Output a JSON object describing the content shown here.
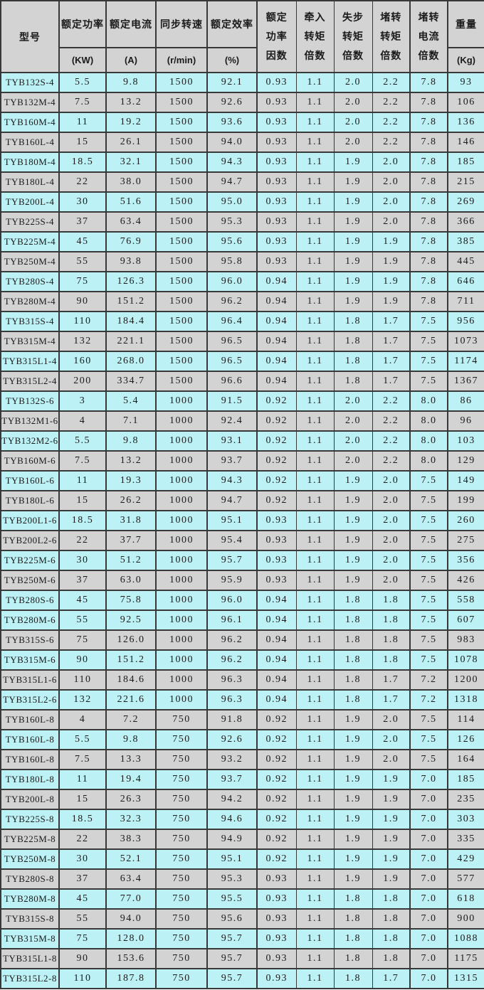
{
  "colors": {
    "row-cyan": "#BCF2F5",
    "row-gray": "#D3D3D3",
    "header-bg": "#D3D3D3",
    "border": "#383838",
    "text": "#1A1A1A"
  },
  "table": {
    "columns": [
      {
        "label": "型号",
        "unit": ""
      },
      {
        "label": "额定功率",
        "unit": "(KW)"
      },
      {
        "label": "额定电流",
        "unit": "(A)"
      },
      {
        "label": "同步转速",
        "unit": "(r/min)"
      },
      {
        "label": "额定效率",
        "unit": "(%)"
      },
      {
        "label": "额定功率因数",
        "lines": [
          "额定",
          "功率",
          "因数"
        ]
      },
      {
        "label": "牵入转矩倍数",
        "lines": [
          "牵入",
          "转矩",
          "倍数"
        ]
      },
      {
        "label": "失步转矩倍数",
        "lines": [
          "失步",
          "转矩",
          "倍数"
        ]
      },
      {
        "label": "堵转转矩倍数",
        "lines": [
          "堵转",
          "转矩",
          "倍数"
        ]
      },
      {
        "label": "堵转电流倍数",
        "lines": [
          "堵转",
          "电流",
          "倍数"
        ]
      },
      {
        "label": "重量",
        "unit": "(Kg)"
      }
    ],
    "rows": [
      {
        "model": "TYB132S-4",
        "values": [
          "5.5",
          "9.8",
          "1500",
          "92.1",
          "0.93",
          "1.1",
          "2.0",
          "2.2",
          "7.8",
          "93"
        ],
        "shade": "cyan"
      },
      {
        "model": "TYB132M-4",
        "values": [
          "7.5",
          "13.2",
          "1500",
          "92.6",
          "0.93",
          "1.1",
          "2.0",
          "2.2",
          "7.8",
          "106"
        ],
        "shade": "gray"
      },
      {
        "model": "TYB160M-4",
        "values": [
          "11",
          "19.2",
          "1500",
          "93.6",
          "0.93",
          "1.1",
          "2.0",
          "2.2",
          "7.8",
          "136"
        ],
        "shade": "cyan"
      },
      {
        "model": "TYB160L-4",
        "values": [
          "15",
          "26.1",
          "1500",
          "94.0",
          "0.93",
          "1.1",
          "2.0",
          "2.2",
          "7.8",
          "146"
        ],
        "shade": "gray"
      },
      {
        "model": "TYB180M-4",
        "values": [
          "18.5",
          "32.1",
          "1500",
          "94.3",
          "0.93",
          "1.1",
          "1.9",
          "2.0",
          "7.8",
          "185"
        ],
        "shade": "cyan"
      },
      {
        "model": "TYB180L-4",
        "values": [
          "22",
          "38.0",
          "1500",
          "94.7",
          "0.93",
          "1.1",
          "1.9",
          "2.0",
          "7.8",
          "215"
        ],
        "shade": "gray"
      },
      {
        "model": "TYB200L-4",
        "values": [
          "30",
          "51.6",
          "1500",
          "95.0",
          "0.93",
          "1.1",
          "1.9",
          "2.0",
          "7.8",
          "269"
        ],
        "shade": "cyan"
      },
      {
        "model": "TYB225S-4",
        "values": [
          "37",
          "63.4",
          "1500",
          "95.3",
          "0.93",
          "1.1",
          "1.9",
          "2.0",
          "7.8",
          "366"
        ],
        "shade": "gray"
      },
      {
        "model": "TYB225M-4",
        "values": [
          "45",
          "76.9",
          "1500",
          "95.6",
          "0.93",
          "1.1",
          "1.9",
          "1.9",
          "7.8",
          "385"
        ],
        "shade": "cyan"
      },
      {
        "model": "TYB250M-4",
        "values": [
          "55",
          "93.8",
          "1500",
          "95.8",
          "0.93",
          "1.1",
          "1.9",
          "1.9",
          "7.8",
          "445"
        ],
        "shade": "gray"
      },
      {
        "model": "TYB280S-4",
        "values": [
          "75",
          "126.3",
          "1500",
          "96.0",
          "0.94",
          "1.1",
          "1.9",
          "1.9",
          "7.8",
          "646"
        ],
        "shade": "cyan"
      },
      {
        "model": "TYB280M-4",
        "values": [
          "90",
          "151.2",
          "1500",
          "96.2",
          "0.94",
          "1.1",
          "1.9",
          "1.9",
          "7.8",
          "711"
        ],
        "shade": "gray"
      },
      {
        "model": "TYB315S-4",
        "values": [
          "110",
          "184.4",
          "1500",
          "96.4",
          "0.94",
          "1.1",
          "1.8",
          "1.7",
          "7.5",
          "956"
        ],
        "shade": "cyan"
      },
      {
        "model": "TYB315M-4",
        "values": [
          "132",
          "221.1",
          "1500",
          "96.5",
          "0.94",
          "1.1",
          "1.8",
          "1.7",
          "7.5",
          "1073"
        ],
        "shade": "gray"
      },
      {
        "model": "TYB315L1-4",
        "values": [
          "160",
          "268.0",
          "1500",
          "96.5",
          "0.94",
          "1.1",
          "1.8",
          "1.7",
          "7.5",
          "1174"
        ],
        "shade": "cyan"
      },
      {
        "model": "TYB315L2-4",
        "values": [
          "200",
          "334.7",
          "1500",
          "96.6",
          "0.94",
          "1.1",
          "1.8",
          "1.7",
          "7.5",
          "1367"
        ],
        "shade": "gray"
      },
      {
        "model": "TYB132S-6",
        "values": [
          "3",
          "5.4",
          "1000",
          "91.5",
          "0.92",
          "1.1",
          "2.0",
          "2.2",
          "8.0",
          "86"
        ],
        "shade": "cyan"
      },
      {
        "model": "TYB132M1-6",
        "values": [
          "4",
          "7.1",
          "1000",
          "92.4",
          "0.92",
          "1.1",
          "2.0",
          "2.2",
          "8.0",
          "96"
        ],
        "shade": "gray"
      },
      {
        "model": "TYB132M2-6",
        "values": [
          "5.5",
          "9.8",
          "1000",
          "93.1",
          "0.92",
          "1.1",
          "2.0",
          "2.2",
          "8.0",
          "103"
        ],
        "shade": "cyan"
      },
      {
        "model": "TYB160M-6",
        "values": [
          "7.5",
          "13.2",
          "1000",
          "93.7",
          "0.92",
          "1.1",
          "2.0",
          "2.2",
          "8.0",
          "129"
        ],
        "shade": "gray"
      },
      {
        "model": "TYB160L-6",
        "values": [
          "11",
          "19.3",
          "1000",
          "94.3",
          "0.92",
          "1.1",
          "1.9",
          "2.0",
          "7.5",
          "149"
        ],
        "shade": "cyan"
      },
      {
        "model": "TYB180L-6",
        "values": [
          "15",
          "26.2",
          "1000",
          "94.7",
          "0.92",
          "1.1",
          "1.9",
          "2.0",
          "7.5",
          "199"
        ],
        "shade": "gray"
      },
      {
        "model": "TYB200L1-6",
        "values": [
          "18.5",
          "31.8",
          "1000",
          "95.1",
          "0.93",
          "1.1",
          "1.9",
          "2.0",
          "7.5",
          "260"
        ],
        "shade": "cyan"
      },
      {
        "model": "TYB200L2-6",
        "values": [
          "22",
          "37.7",
          "1000",
          "95.4",
          "0.93",
          "1.1",
          "1.9",
          "2.0",
          "7.5",
          "275"
        ],
        "shade": "gray"
      },
      {
        "model": "TYB225M-6",
        "values": [
          "30",
          "51.2",
          "1000",
          "95.7",
          "0.93",
          "1.1",
          "1.9",
          "2.0",
          "7.5",
          "356"
        ],
        "shade": "cyan"
      },
      {
        "model": "TYB250M-6",
        "values": [
          "37",
          "63.0",
          "1000",
          "95.9",
          "0.93",
          "1.1",
          "1.9",
          "2.0",
          "7.5",
          "426"
        ],
        "shade": "gray"
      },
      {
        "model": "TYB280S-6",
        "values": [
          "45",
          "75.8",
          "1000",
          "96.0",
          "0.94",
          "1.1",
          "1.8",
          "1.8",
          "7.5",
          "558"
        ],
        "shade": "cyan"
      },
      {
        "model": "TYB280M-6",
        "values": [
          "55",
          "92.5",
          "1000",
          "96.1",
          "0.94",
          "1.1",
          "1.8",
          "1.8",
          "7.5",
          "607"
        ],
        "shade": "cyan"
      },
      {
        "model": "TYB315S-6",
        "values": [
          "75",
          "126.0",
          "1000",
          "96.2",
          "0.94",
          "1.1",
          "1.8",
          "1.8",
          "7.5",
          "983"
        ],
        "shade": "gray"
      },
      {
        "model": "TYB315M-6",
        "values": [
          "90",
          "151.2",
          "1000",
          "96.2",
          "0.94",
          "1.1",
          "1.8",
          "1.8",
          "7.5",
          "1078"
        ],
        "shade": "cyan"
      },
      {
        "model": "TYB315L1-6",
        "values": [
          "110",
          "184.6",
          "1000",
          "96.3",
          "0.94",
          "1.1",
          "1.8",
          "1.7",
          "7.2",
          "1200"
        ],
        "shade": "gray"
      },
      {
        "model": "TYB315L2-6",
        "values": [
          "132",
          "221.6",
          "1000",
          "96.3",
          "0.94",
          "1.1",
          "1.8",
          "1.7",
          "7.2",
          "1318"
        ],
        "shade": "cyan"
      },
      {
        "model": "TYB160L-8",
        "values": [
          "4",
          "7.2",
          "750",
          "91.8",
          "0.92",
          "1.1",
          "1.9",
          "2.0",
          "7.5",
          "114"
        ],
        "shade": "gray"
      },
      {
        "model": "TYB160L-8",
        "values": [
          "5.5",
          "9.8",
          "750",
          "92.6",
          "0.92",
          "1.1",
          "1.9",
          "2.0",
          "7.5",
          "126"
        ],
        "shade": "cyan"
      },
      {
        "model": "TYB160L-8",
        "values": [
          "7.5",
          "13.3",
          "750",
          "93.2",
          "0.92",
          "1.1",
          "1.9",
          "2.0",
          "7.5",
          "164"
        ],
        "shade": "gray"
      },
      {
        "model": "TYB180L-8",
        "values": [
          "11",
          "19.4",
          "750",
          "93.7",
          "0.92",
          "1.1",
          "1.9",
          "1.9",
          "7.0",
          "185"
        ],
        "shade": "cyan"
      },
      {
        "model": "TYB200L-8",
        "values": [
          "15",
          "26.3",
          "750",
          "94.2",
          "0.92",
          "1.1",
          "1.9",
          "1.9",
          "7.0",
          "235"
        ],
        "shade": "gray"
      },
      {
        "model": "TYB225S-8",
        "values": [
          "18.5",
          "32.3",
          "750",
          "94.6",
          "0.92",
          "1.1",
          "1.9",
          "1.9",
          "7.0",
          "303"
        ],
        "shade": "cyan"
      },
      {
        "model": "TYB225M-8",
        "values": [
          "22",
          "38.3",
          "750",
          "94.9",
          "0.92",
          "1.1",
          "1.9",
          "1.9",
          "7.0",
          "335"
        ],
        "shade": "gray"
      },
      {
        "model": "TYB250M-8",
        "values": [
          "30",
          "52.1",
          "750",
          "95.1",
          "0.92",
          "1.1",
          "1.9",
          "1.9",
          "7.0",
          "429"
        ],
        "shade": "cyan"
      },
      {
        "model": "TYB280S-8",
        "values": [
          "37",
          "63.4",
          "750",
          "95.3",
          "0.93",
          "1.1",
          "1.9",
          "1.9",
          "7.0",
          "577"
        ],
        "shade": "gray"
      },
      {
        "model": "TYB280M-8",
        "values": [
          "45",
          "77.0",
          "750",
          "95.5",
          "0.93",
          "1.1",
          "1.8",
          "1.8",
          "7.0",
          "618"
        ],
        "shade": "cyan"
      },
      {
        "model": "TYB315S-8",
        "values": [
          "55",
          "94.0",
          "750",
          "95.6",
          "0.93",
          "1.1",
          "1.8",
          "1.8",
          "7.0",
          "900"
        ],
        "shade": "gray"
      },
      {
        "model": "TYB315M-8",
        "values": [
          "75",
          "128.0",
          "750",
          "95.7",
          "0.93",
          "1.1",
          "1.8",
          "1.8",
          "7.0",
          "1088"
        ],
        "shade": "cyan"
      },
      {
        "model": "TYB315L1-8",
        "values": [
          "90",
          "153.6",
          "750",
          "95.7",
          "0.93",
          "1.1",
          "1.8",
          "1.8",
          "7.0",
          "1175"
        ],
        "shade": "gray"
      },
      {
        "model": "TYB315L2-8",
        "values": [
          "110",
          "187.8",
          "750",
          "95.7",
          "0.93",
          "1.1",
          "1.8",
          "1.7",
          "7.0",
          "1315"
        ],
        "shade": "cyan"
      }
    ]
  }
}
